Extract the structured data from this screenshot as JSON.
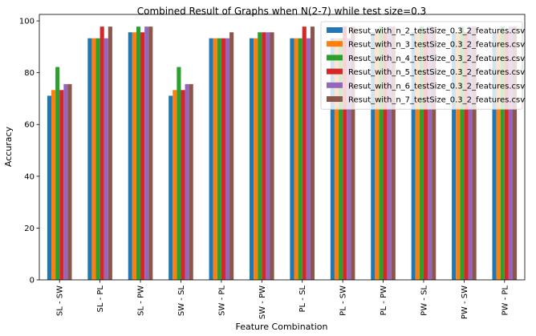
{
  "chart_data": {
    "type": "bar",
    "title": "Combined Result of Graphs when N(2-7) while test size=0.3",
    "xlabel": "Feature Combination",
    "ylabel": "Accuracy",
    "ylim": [
      0,
      102.5
    ],
    "yticks": [
      0,
      20,
      40,
      60,
      80,
      100
    ],
    "grid": false,
    "legend_position": "top-right",
    "categories": [
      "SL - SW",
      "SL - PL",
      "SL - PW",
      "SW - SL",
      "SW - PL",
      "SW - PW",
      "PL - SL",
      "PL - SW",
      "PL - PW",
      "PW - SL",
      "PW - SW",
      "PW - PL"
    ],
    "series": [
      {
        "name": "Resut_with_n_2_testSize_0.3_2_features.csv",
        "color": "#1f77b4",
        "values": [
          71.1,
          93.3,
          95.6,
          71.1,
          93.3,
          93.3,
          93.3,
          93.3,
          95.6,
          95.6,
          95.6,
          95.6
        ]
      },
      {
        "name": "Resut_with_n_3_testSize_0.3_2_features.csv",
        "color": "#ff7f0e",
        "values": [
          73.3,
          93.3,
          95.6,
          73.3,
          93.3,
          93.3,
          93.3,
          93.3,
          95.6,
          95.6,
          95.6,
          95.6
        ]
      },
      {
        "name": "Resut_with_n_4_testSize_0.3_2_features.csv",
        "color": "#2ca02c",
        "values": [
          82.2,
          93.3,
          97.8,
          82.2,
          93.3,
          95.6,
          93.3,
          93.3,
          97.8,
          97.8,
          97.8,
          97.8
        ]
      },
      {
        "name": "Resut_with_n_5_testSize_0.3_2_features.csv",
        "color": "#d62728",
        "values": [
          73.3,
          97.8,
          95.6,
          73.3,
          93.3,
          95.6,
          97.8,
          97.8,
          95.6,
          95.6,
          95.6,
          95.6
        ]
      },
      {
        "name": "Resut_with_n_6_testSize_0.3_2_features.csv",
        "color": "#9467bd",
        "values": [
          75.6,
          93.3,
          97.8,
          75.6,
          93.3,
          95.6,
          93.3,
          93.3,
          97.8,
          97.8,
          97.8,
          97.8
        ]
      },
      {
        "name": "Resut_with_n_7_testSize_0.3_2_features.csv",
        "color": "#8c564b",
        "values": [
          75.6,
          97.8,
          97.8,
          75.6,
          95.6,
          95.6,
          97.8,
          97.8,
          97.8,
          97.8,
          97.8,
          97.8
        ]
      }
    ]
  }
}
